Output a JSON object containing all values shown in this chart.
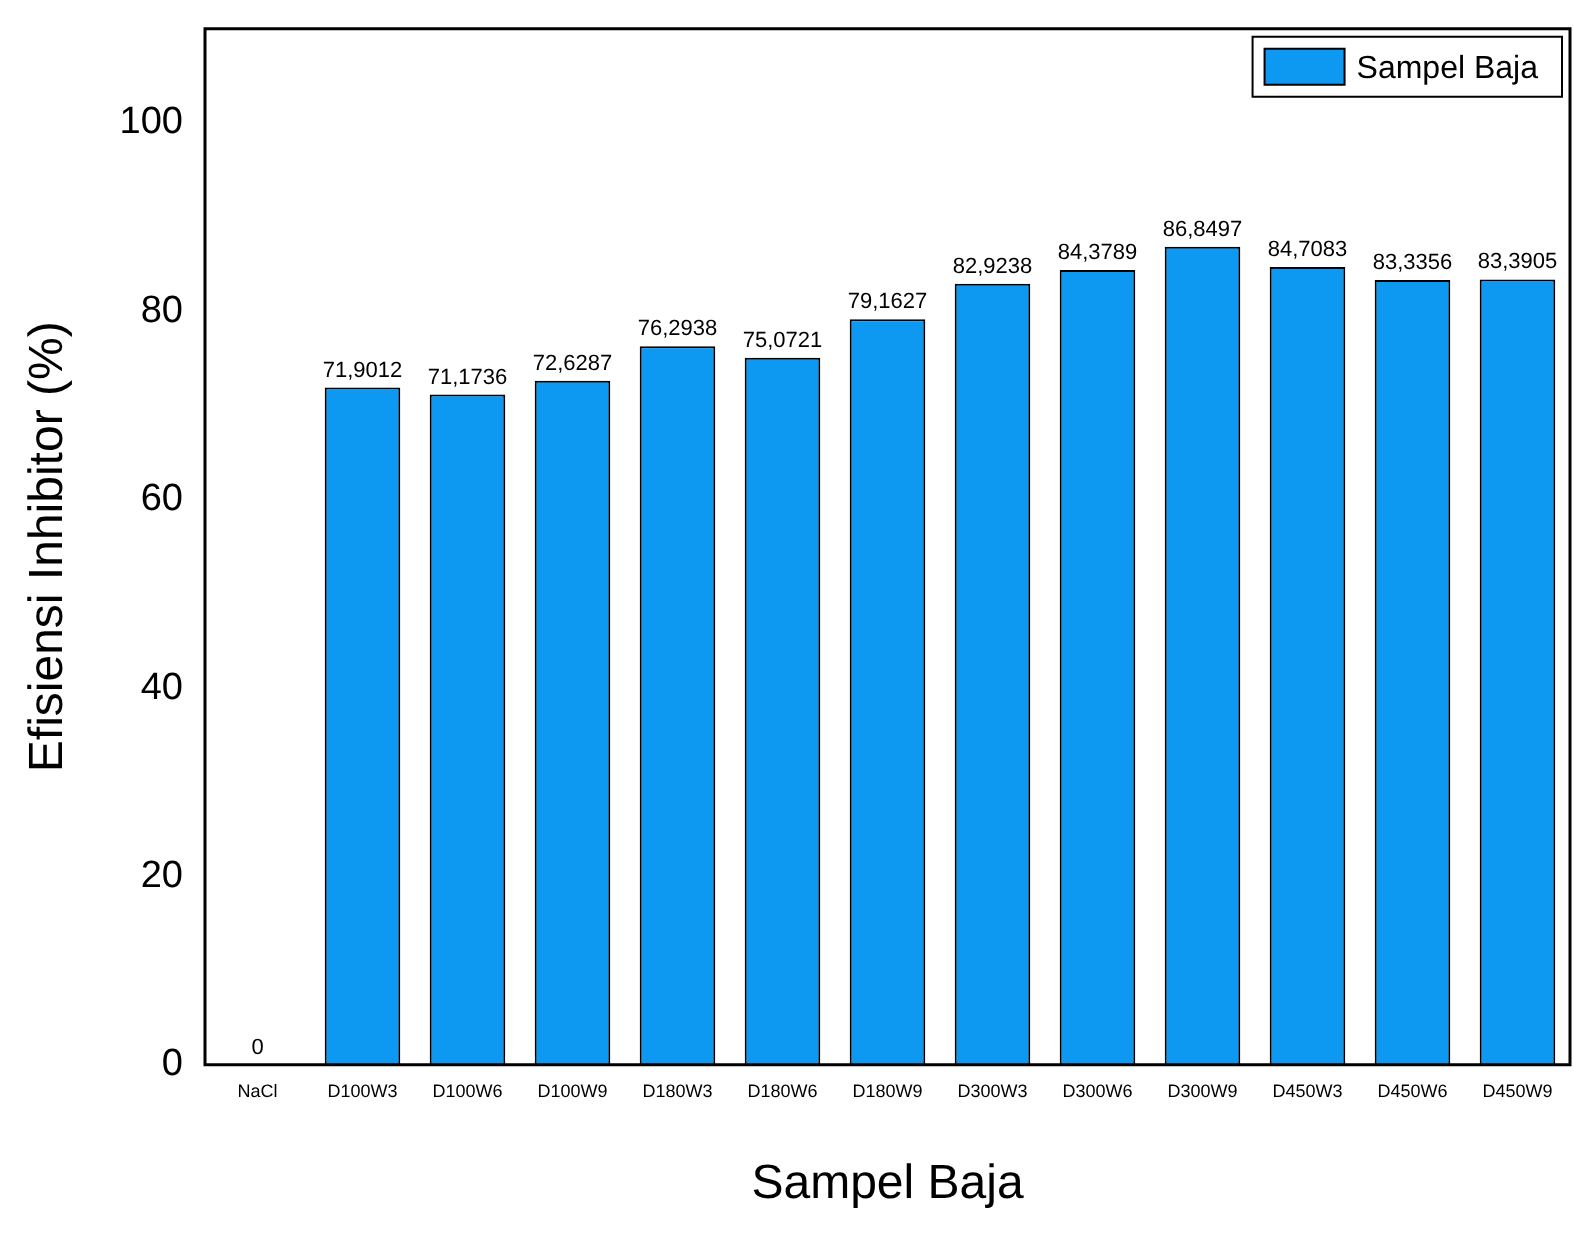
{
  "chart_data": {
    "type": "bar",
    "xlabel": "Sampel Baja",
    "ylabel": "Efisiensi Inhibitor (%)",
    "categories": [
      "NaCl",
      "D100W3",
      "D100W6",
      "D100W9",
      "D180W3",
      "D180W6",
      "D180W9",
      "D300W3",
      "D300W6",
      "D300W9",
      "D450W3",
      "D450W6",
      "D450W9"
    ],
    "series": [
      {
        "name": "Sampel Baja",
        "color": "#0d99f2",
        "values": [
          0,
          71.9012,
          71.1736,
          72.6287,
          76.2938,
          75.0721,
          79.1627,
          82.9238,
          84.3789,
          86.8497,
          84.7083,
          83.3356,
          83.3905
        ],
        "value_labels": [
          "0",
          "71,9012",
          "71,1736",
          "72,6287",
          "76,2938",
          "75,0721",
          "79,1627",
          "82,9238",
          "84,3789",
          "86,8497",
          "84,7083",
          "83,3356",
          "83,3905"
        ]
      }
    ],
    "ylim": [
      0,
      110
    ],
    "yticks": [
      0,
      20,
      40,
      60,
      80,
      100
    ],
    "grid": false,
    "legend": "top right"
  }
}
